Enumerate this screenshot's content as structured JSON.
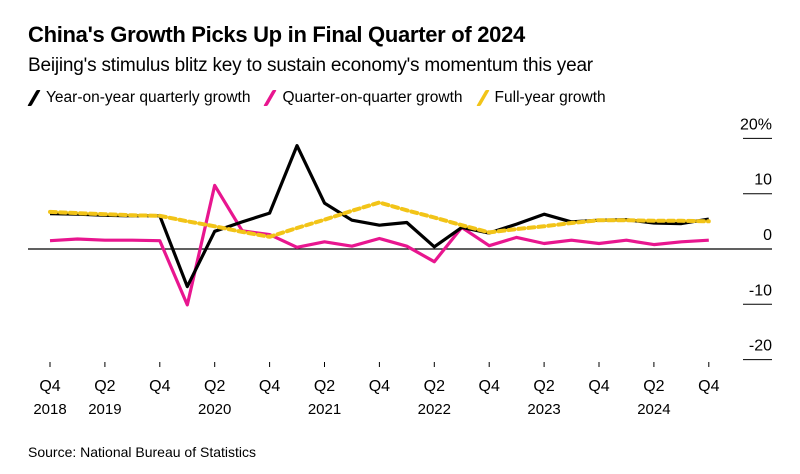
{
  "header": {
    "title": "China's Growth Picks Up in Final Quarter of 2024",
    "subtitle": "Beijing's stimulus blitz key to sustain economy's momentum this year"
  },
  "legend": [
    {
      "label": "Year-on-year quarterly growth",
      "color": "#000000"
    },
    {
      "label": "Quarter-on-quarter growth",
      "color": "#e8168f"
    },
    {
      "label": "Full-year growth",
      "color": "#f2c418"
    }
  ],
  "footer": {
    "source": "Source: National Bureau of Statistics"
  },
  "chart_data": {
    "type": "line",
    "title": "China's Growth Picks Up in Final Quarter of 2024",
    "subtitle": "Beijing's stimulus blitz key to sustain economy's momentum this year",
    "xlabel": "",
    "ylabel": "",
    "ylim": [
      -20,
      20
    ],
    "y_ticks": [
      20,
      10,
      0,
      -10,
      -20
    ],
    "y_tick_labels": [
      "20%",
      "10",
      "0",
      "-10",
      "-20"
    ],
    "y_axis_side": "right",
    "grid": false,
    "legend_position": "top-left",
    "x": [
      "Q4 2018",
      "Q1 2019",
      "Q2 2019",
      "Q3 2019",
      "Q4 2019",
      "Q1 2020",
      "Q2 2020",
      "Q3 2020",
      "Q4 2020",
      "Q1 2021",
      "Q2 2021",
      "Q3 2021",
      "Q4 2021",
      "Q1 2022",
      "Q2 2022",
      "Q3 2022",
      "Q4 2022",
      "Q1 2023",
      "Q2 2023",
      "Q3 2023",
      "Q4 2023",
      "Q1 2024",
      "Q2 2024",
      "Q3 2024",
      "Q4 2024"
    ],
    "x_ticks": [
      {
        "index": 0,
        "quarter": "Q4",
        "year": "2018"
      },
      {
        "index": 2,
        "quarter": "Q2",
        "year": "2019"
      },
      {
        "index": 4,
        "quarter": "Q4",
        "year": ""
      },
      {
        "index": 6,
        "quarter": "Q2",
        "year": "2020"
      },
      {
        "index": 8,
        "quarter": "Q4",
        "year": ""
      },
      {
        "index": 10,
        "quarter": "Q2",
        "year": "2021"
      },
      {
        "index": 12,
        "quarter": "Q4",
        "year": ""
      },
      {
        "index": 14,
        "quarter": "Q2",
        "year": "2022"
      },
      {
        "index": 16,
        "quarter": "Q4",
        "year": ""
      },
      {
        "index": 18,
        "quarter": "Q2",
        "year": "2023"
      },
      {
        "index": 20,
        "quarter": "Q4",
        "year": ""
      },
      {
        "index": 22,
        "quarter": "Q2",
        "year": "2024"
      },
      {
        "index": 24,
        "quarter": "Q4",
        "year": ""
      }
    ],
    "series": [
      {
        "name": "Year-on-year quarterly growth",
        "color": "#000000",
        "style": "solid",
        "values": [
          6.4,
          6.3,
          6.1,
          6.0,
          6.0,
          -6.8,
          3.2,
          4.9,
          6.5,
          18.7,
          8.3,
          5.2,
          4.3,
          4.8,
          0.4,
          3.9,
          2.9,
          4.5,
          6.3,
          4.9,
          5.2,
          5.3,
          4.7,
          4.6,
          5.4
        ]
      },
      {
        "name": "Quarter-on-quarter growth",
        "color": "#e8168f",
        "style": "solid",
        "values": [
          1.5,
          1.8,
          1.6,
          1.6,
          1.5,
          -10.1,
          11.5,
          3.3,
          2.6,
          0.3,
          1.3,
          0.5,
          1.9,
          0.5,
          -2.3,
          3.9,
          0.6,
          2.1,
          1.0,
          1.6,
          1.0,
          1.6,
          0.8,
          1.3,
          1.6
        ]
      },
      {
        "name": "Full-year growth",
        "color": "#f2c418",
        "style": "dotted",
        "values": [
          6.7,
          6.5,
          6.3,
          6.1,
          6.0,
          5.0,
          4.1,
          3.1,
          2.2,
          3.8,
          5.3,
          6.9,
          8.4,
          7.0,
          5.7,
          4.3,
          3.0,
          3.6,
          4.1,
          4.7,
          5.2,
          5.2,
          5.1,
          5.1,
          5.0
        ]
      }
    ]
  }
}
